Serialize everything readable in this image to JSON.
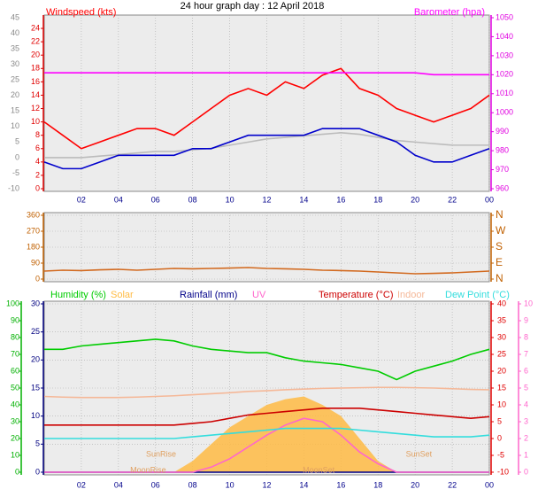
{
  "chart_data": [
    {
      "type": "line",
      "title": "24 hour graph day : 12 April 2018",
      "x": [
        0,
        1,
        2,
        3,
        4,
        5,
        6,
        7,
        8,
        9,
        10,
        11,
        12,
        13,
        14,
        15,
        16,
        17,
        18,
        19,
        20,
        21,
        22,
        23,
        24
      ],
      "xlim": [
        0,
        24
      ],
      "xticks": [
        {
          "value": 2,
          "label": "02"
        },
        {
          "value": 4,
          "label": "04"
        },
        {
          "value": 6,
          "label": "06"
        },
        {
          "value": 8,
          "label": "08"
        },
        10,
        12,
        14,
        16,
        18,
        20,
        22,
        {
          "value": 24,
          "label": "00"
        }
      ],
      "ylim": [
        -10,
        45
      ],
      "yticks": [
        -10,
        -5,
        0,
        5,
        10,
        15,
        20,
        25,
        30,
        35,
        40,
        45
      ],
      "y2lim": [
        0,
        25.6
      ],
      "y2ticks": [
        0,
        2,
        4,
        6,
        8,
        10,
        12,
        14,
        16,
        18,
        20,
        22,
        24
      ],
      "y3lim": [
        960,
        1050
      ],
      "y3ticks": [
        960,
        970,
        980,
        990,
        1000,
        1010,
        1020,
        1030,
        1040,
        1050
      ],
      "grid": true,
      "series": [
        {
          "color": "#bbbbbb",
          "axis": "y",
          "values": [
            0,
            0,
            0,
            0.5,
            1,
            1.5,
            2,
            2,
            2.5,
            3,
            4,
            5,
            6,
            6.5,
            7,
            7.5,
            8,
            7.5,
            6.5,
            5.5,
            5,
            4.5,
            4,
            4,
            4
          ]
        },
        {
          "name": "Windspeed (kts)",
          "color": "#ff0000",
          "axis": "y2",
          "values": [
            10,
            8,
            6,
            7,
            8,
            9,
            9,
            8,
            10,
            12,
            14,
            15,
            14,
            16,
            15,
            17,
            18,
            15,
            14,
            12,
            11,
            10,
            11,
            12,
            14
          ]
        },
        {
          "color": "#0000cc",
          "axis": "y2",
          "values": [
            4,
            3,
            3,
            4,
            5,
            5,
            5,
            5,
            6,
            6,
            7,
            8,
            8,
            8,
            8,
            9,
            9,
            9,
            8,
            7,
            5,
            4,
            4,
            5,
            6
          ]
        },
        {
          "name": "Barometer (hpa)",
          "color": "#ff00ff",
          "axis": "y3",
          "values": [
            1021,
            1021,
            1021,
            1021,
            1021,
            1021,
            1021,
            1021,
            1021,
            1021,
            1021,
            1021,
            1021,
            1021,
            1021,
            1021,
            1021,
            1021,
            1021,
            1021,
            1021,
            1020,
            1020,
            1020,
            1020
          ]
        }
      ]
    },
    {
      "type": "line",
      "x": [
        0,
        1,
        2,
        3,
        4,
        5,
        6,
        7,
        8,
        9,
        10,
        11,
        12,
        13,
        14,
        15,
        16,
        17,
        18,
        19,
        20,
        21,
        22,
        23,
        24
      ],
      "xlim": [
        0,
        24
      ],
      "xticks": [
        {
          "value": 2,
          "label": "02"
        },
        {
          "value": 4,
          "label": "04"
        },
        {
          "value": 6,
          "label": "06"
        },
        {
          "value": 8,
          "label": "08"
        },
        10,
        12,
        14,
        16,
        18,
        20,
        22,
        {
          "value": 24,
          "label": "00"
        }
      ],
      "ylim": [
        0,
        360
      ],
      "yticks": [
        0,
        90,
        180,
        270,
        360
      ],
      "y2lim": [
        0,
        360
      ],
      "y2ticks": [
        {
          "value": 0,
          "label": "N"
        },
        {
          "value": 90,
          "label": "E"
        },
        {
          "value": 180,
          "label": "S"
        },
        {
          "value": 270,
          "label": "W"
        },
        {
          "value": 360,
          "label": "N"
        }
      ],
      "grid": true,
      "series": [
        {
          "color": "#d2691e",
          "axis": "y",
          "values": [
            45,
            50,
            48,
            52,
            55,
            50,
            55,
            60,
            58,
            60,
            62,
            65,
            60,
            58,
            55,
            50,
            48,
            45,
            40,
            35,
            30,
            32,
            35,
            40,
            45
          ]
        }
      ]
    },
    {
      "type": "line",
      "x": [
        0,
        1,
        2,
        3,
        4,
        5,
        6,
        7,
        8,
        9,
        10,
        11,
        12,
        13,
        14,
        15,
        16,
        17,
        18,
        19,
        20,
        21,
        22,
        23,
        24
      ],
      "xlim": [
        0,
        24
      ],
      "xticks": [
        {
          "value": 2,
          "label": "02"
        },
        {
          "value": 4,
          "label": "04"
        },
        {
          "value": 6,
          "label": "06"
        },
        {
          "value": 8,
          "label": "08"
        },
        10,
        12,
        14,
        16,
        18,
        20,
        22,
        {
          "value": 24,
          "label": "00"
        }
      ],
      "ylim": [
        0,
        30
      ],
      "yticks": [
        0,
        5,
        10,
        15,
        20,
        25,
        30
      ],
      "y2lim": [
        -10,
        40
      ],
      "y2ticks": [
        -10,
        -5,
        0,
        5,
        10,
        15,
        20,
        25,
        30,
        35,
        40
      ],
      "y3lim": [
        0,
        100
      ],
      "y3ticks": [
        0,
        10,
        20,
        30,
        40,
        50,
        60,
        70,
        80,
        90,
        100
      ],
      "y4lim": [
        0,
        10
      ],
      "y4ticks": [
        0,
        1,
        2,
        3,
        4,
        5,
        6,
        7,
        8,
        9,
        10
      ],
      "grid": true,
      "series": [
        {
          "name": "Humidity (%)",
          "color": "#00cc00",
          "axis": "y3",
          "values": [
            73,
            73,
            75,
            76,
            77,
            78,
            79,
            78,
            75,
            73,
            72,
            71,
            71,
            68,
            66,
            65,
            64,
            62,
            60,
            55,
            60,
            63,
            66,
            70,
            73
          ]
        },
        {
          "name": "Solar",
          "color": "#ffbb44",
          "axis": "y",
          "type": "area",
          "values": [
            0,
            0,
            0,
            0,
            0,
            0,
            0,
            0,
            2,
            5,
            8,
            10,
            12,
            13,
            13.5,
            12,
            10,
            6,
            2,
            0,
            0,
            0,
            0,
            0,
            0
          ]
        },
        {
          "name": "Rainfall (mm)",
          "color": "#000088",
          "axis": "y",
          "values": [
            0,
            0,
            0,
            0,
            0,
            0,
            0,
            0,
            0,
            0,
            0,
            0,
            0,
            0,
            0,
            0,
            0,
            0,
            0,
            0,
            0,
            0,
            0,
            0,
            0
          ]
        },
        {
          "name": "UV",
          "color": "#ff66cc",
          "axis": "y4",
          "values": [
            0,
            0,
            0,
            0,
            0,
            0,
            0,
            0,
            0,
            0.3,
            0.8,
            1.5,
            2.2,
            2.8,
            3.2,
            3,
            2.2,
            1.2,
            0.5,
            0,
            0,
            0,
            0,
            0,
            0
          ]
        },
        {
          "name": "Temperature (°C)",
          "color": "#cc0000",
          "axis": "y2",
          "values": [
            4,
            4,
            4,
            4,
            4,
            4,
            4,
            4,
            4.5,
            5,
            6,
            7,
            7.5,
            8,
            8.5,
            9,
            9,
            9,
            8.5,
            8,
            7.5,
            7,
            6.5,
            6,
            6.5
          ]
        },
        {
          "name": "Indoor",
          "color": "#f5b898",
          "axis": "y2",
          "values": [
            12.5,
            12.3,
            12.2,
            12.2,
            12.2,
            12.3,
            12.5,
            12.7,
            13,
            13.3,
            13.6,
            14,
            14.2,
            14.5,
            14.7,
            14.9,
            15,
            15.1,
            15.2,
            15.2,
            15.1,
            15,
            14.8,
            14.6,
            14.5
          ]
        },
        {
          "name": "Dew Point (°C)",
          "color": "#33dddd",
          "axis": "y2",
          "values": [
            0,
            0,
            0,
            0,
            0,
            0,
            0,
            0,
            0.5,
            1,
            1.5,
            2,
            2.5,
            3,
            3,
            3,
            3,
            2.5,
            2,
            1.5,
            1,
            0.5,
            0.5,
            0.5,
            1
          ]
        }
      ],
      "annotations": [
        {
          "text": "SunRise",
          "x": 6.3
        },
        {
          "text": "SunSet",
          "x": 20.2
        },
        {
          "text": "MoonRise",
          "x": 5.6
        },
        {
          "text": "MoonSet",
          "x": 14.8
        }
      ]
    }
  ]
}
